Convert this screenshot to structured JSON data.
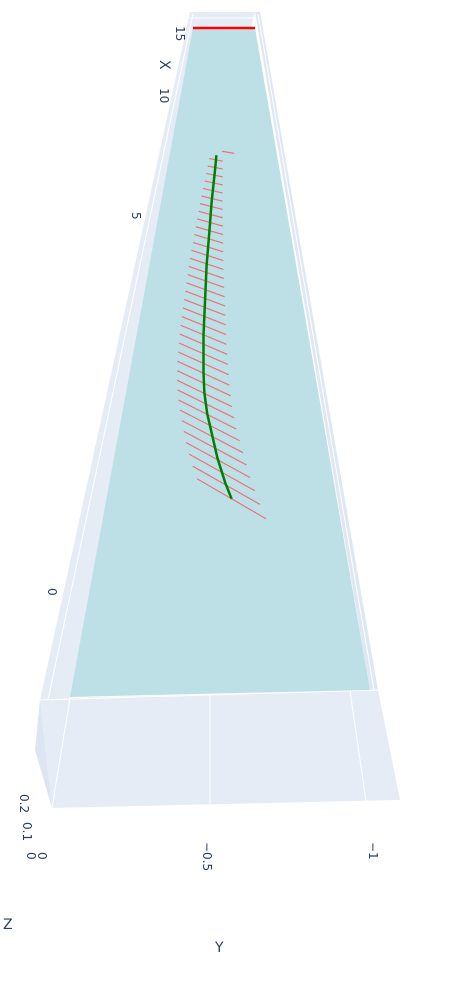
{
  "chart_data": {
    "type": "3d-line",
    "title": "",
    "x_axis": {
      "title": "X",
      "ticks": [
        "0",
        "5",
        "10",
        "15"
      ],
      "range": [
        -1.5,
        15.5
      ]
    },
    "y_axis": {
      "title": "Y",
      "ticks": [
        "−0.5",
        "−1"
      ],
      "range": [
        -1.1,
        0
      ]
    },
    "z_axis": {
      "title": "Z",
      "ticks": [
        "0",
        "0",
        "0.1",
        "0.2"
      ],
      "range": [
        0,
        0.2
      ]
    },
    "surface_plane": {
      "color": "#bde0e6"
    },
    "line_trace": {
      "color": "#008000",
      "points": [
        {
          "x": 10.5,
          "y": -0.48,
          "z": 0.1
        },
        {
          "x": 10.0,
          "y": -0.47,
          "z": 0.1
        },
        {
          "x": 9.0,
          "y": -0.45,
          "z": 0.1
        },
        {
          "x": 8.0,
          "y": -0.44,
          "z": 0.1
        },
        {
          "x": 7.0,
          "y": -0.43,
          "z": 0.1
        },
        {
          "x": 6.0,
          "y": -0.43,
          "z": 0.1
        },
        {
          "x": 5.0,
          "y": -0.43,
          "z": 0.1
        },
        {
          "x": 4.0,
          "y": -0.44,
          "z": 0.1
        },
        {
          "x": 3.5,
          "y": -0.45,
          "z": 0.1
        },
        {
          "x": 3.0,
          "y": -0.47,
          "z": 0.1
        },
        {
          "x": 2.5,
          "y": -0.5,
          "z": 0.1
        },
        {
          "x": 2.0,
          "y": -0.53,
          "z": 0.1
        },
        {
          "x": 1.5,
          "y": -0.57,
          "z": 0.1
        },
        {
          "x": 1.2,
          "y": -0.6,
          "z": 0.1
        }
      ]
    },
    "ribs": {
      "color": "#e8747c",
      "count": 38
    },
    "top_marker": {
      "color": "#ff0000",
      "x": 15
    }
  }
}
